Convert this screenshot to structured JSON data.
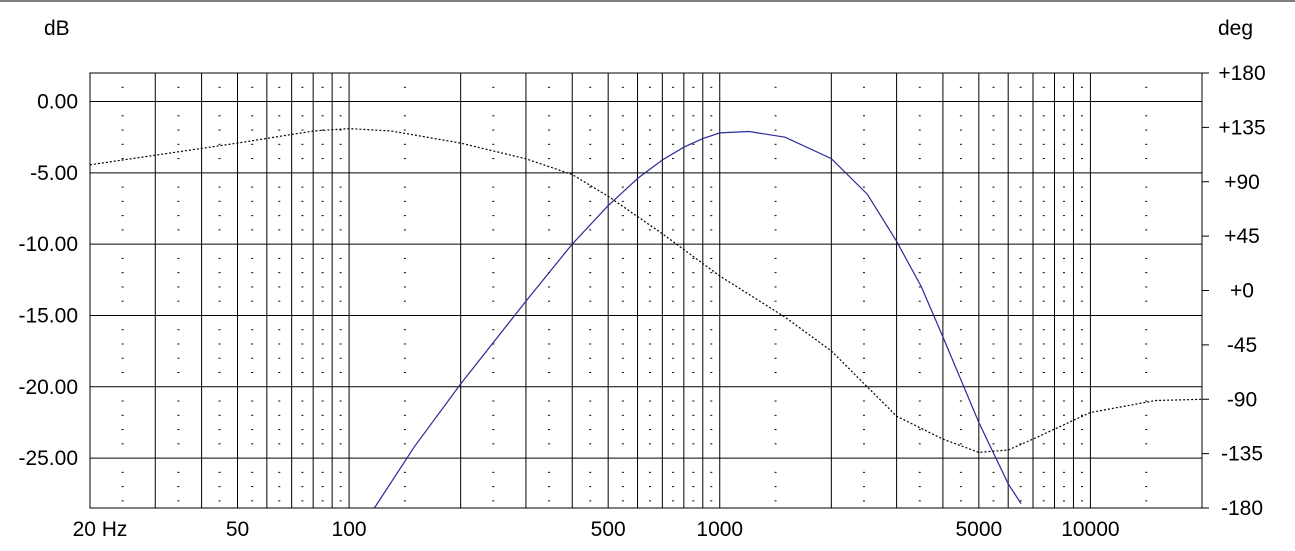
{
  "chart_data": {
    "type": "line",
    "title": "",
    "xscale": "log",
    "xlim": [
      20,
      20000
    ],
    "y_left": {
      "label": "dB",
      "lim": [
        -28.5,
        2.0
      ],
      "ticks": [
        0,
        -5,
        -10,
        -15,
        -20,
        -25
      ],
      "tick_labels": [
        "0.00",
        "-5.00",
        "-10.00",
        "-15.00",
        "-20.00",
        "-25.00"
      ]
    },
    "y_right": {
      "label": "deg",
      "lim": [
        -180,
        180
      ],
      "ticks": [
        180,
        135,
        90,
        45,
        0,
        -45,
        -90,
        -135,
        -180
      ],
      "tick_labels": [
        "+180",
        "+135",
        "+90",
        "+45",
        "+0",
        "-45",
        "-90",
        "-135",
        "-180"
      ]
    },
    "x_ticks": [
      20,
      50,
      100,
      500,
      1000,
      5000,
      10000
    ],
    "x_tick_labels": [
      "20 Hz",
      "50",
      "100",
      "500",
      "1000",
      "5000",
      "10000"
    ],
    "grid": true,
    "colors": {
      "magnitude": "#2a2a9a",
      "phase": "#000000",
      "grid": "#000000"
    },
    "series": [
      {
        "axis": "left",
        "style": "solid",
        "x": [
          117,
          150,
          200,
          300,
          400,
          500,
          600,
          700,
          800,
          900,
          1000,
          1200,
          1500,
          2000,
          2500,
          3000,
          3500,
          4000,
          5000,
          6000,
          6500
        ],
        "y": [
          -28.5,
          -24.2,
          -19.8,
          -14.0,
          -10.0,
          -7.3,
          -5.4,
          -4.1,
          -3.2,
          -2.6,
          -2.2,
          -2.1,
          -2.5,
          -4.0,
          -6.5,
          -9.8,
          -13.0,
          -16.5,
          -22.5,
          -26.8,
          -28.2
        ]
      },
      {
        "axis": "right",
        "style": "dotted",
        "x": [
          20,
          30,
          50,
          80,
          100,
          130,
          200,
          300,
          400,
          500,
          700,
          1000,
          1500,
          2000,
          3000,
          4000,
          5000,
          6000,
          7000,
          10000,
          15000,
          20000
        ],
        "y": [
          104,
          112,
          122,
          132,
          134,
          132,
          122,
          109,
          96,
          78,
          47,
          12,
          -22,
          -50,
          -104,
          -123,
          -134,
          -132,
          -123,
          -101,
          -91,
          -90
        ]
      }
    ]
  }
}
